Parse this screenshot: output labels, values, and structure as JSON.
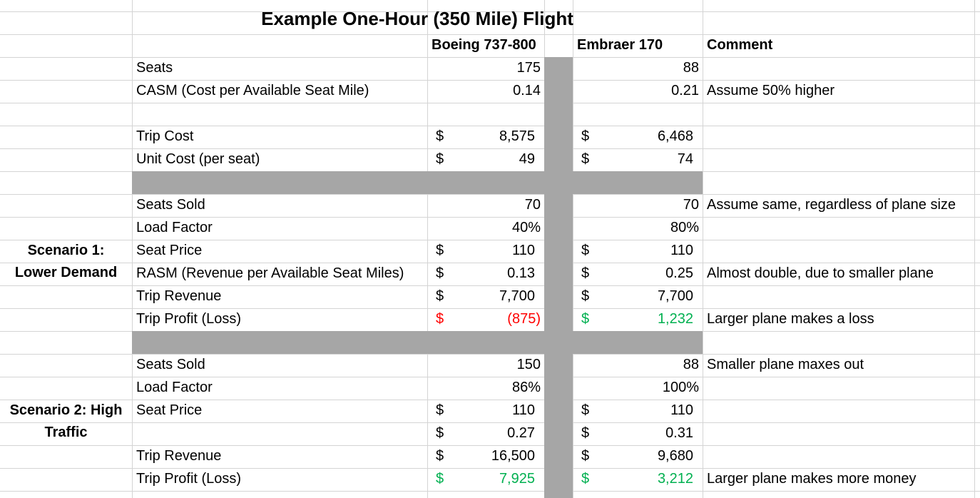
{
  "title": "Example One-Hour (350 Mile) Flight",
  "headers": {
    "boeing": "Boeing 737-800",
    "embraer": "Embraer 170",
    "comment": "Comment"
  },
  "currency_symbol": "$",
  "colors": {
    "gray_band": "#a6a6a6",
    "grid": "#d4d4d4",
    "loss": "#ff0000",
    "profit": "#00b050"
  },
  "top": {
    "seats": {
      "label": "Seats",
      "boeing": "175",
      "embraer": "88"
    },
    "casm": {
      "label": "CASM (Cost per Available Seat Mile)",
      "boeing": "0.14",
      "embraer": "0.21",
      "comment": "Assume 50% higher"
    },
    "trip_cost": {
      "label": "Trip Cost",
      "boeing": "8,575",
      "embraer": "6,468"
    },
    "unit_cost": {
      "label": "Unit Cost (per seat)",
      "boeing": "49",
      "embraer": "74"
    }
  },
  "scenario1": {
    "title_line1": "Scenario 1:",
    "title_line2": "Lower Demand",
    "seats_sold": {
      "label": "Seats Sold",
      "boeing": "70",
      "embraer": "70",
      "comment": "Assume same, regardless of plane size"
    },
    "load_factor": {
      "label": "Load Factor",
      "boeing": "40%",
      "embraer": "80%"
    },
    "seat_price": {
      "label": "Seat Price",
      "boeing": "110",
      "embraer": "110"
    },
    "rasm": {
      "label": "RASM (Revenue per Available Seat Miles)",
      "boeing": "0.13",
      "embraer": "0.25",
      "comment": "Almost double, due to smaller plane"
    },
    "trip_revenue": {
      "label": "Trip Revenue",
      "boeing": "7,700",
      "embraer": "7,700"
    },
    "trip_profit": {
      "label": "Trip Profit (Loss)",
      "boeing": "(875)",
      "embraer": "1,232",
      "comment": "Larger plane makes a loss"
    }
  },
  "scenario2": {
    "title_line1": "Scenario 2: High",
    "title_line2": "Traffic",
    "seats_sold": {
      "label": "Seats Sold",
      "boeing": "150",
      "embraer": "88",
      "comment": "Smaller plane maxes out"
    },
    "load_factor": {
      "label": "Load Factor",
      "boeing": "86%",
      "embraer": "100%"
    },
    "seat_price": {
      "label": "Seat Price",
      "boeing": "110",
      "embraer": "110"
    },
    "rasm": {
      "label": "",
      "boeing": "0.27",
      "embraer": "0.31"
    },
    "trip_revenue": {
      "label": "Trip Revenue",
      "boeing": "16,500",
      "embraer": "9,680"
    },
    "trip_profit": {
      "label": "Trip Profit (Loss)",
      "boeing": "7,925",
      "embraer": "3,212",
      "comment": "Larger plane makes more money"
    }
  }
}
